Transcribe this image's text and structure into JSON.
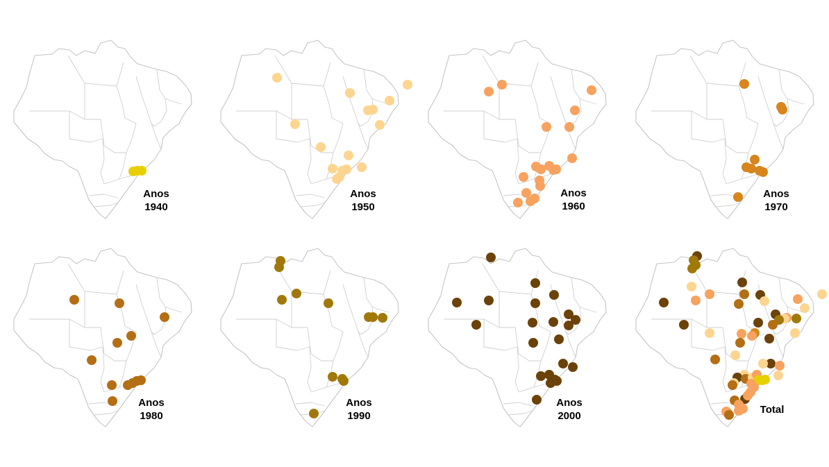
{
  "colors": {
    "1940": "#e8d000",
    "1950": "#fdd590",
    "1960": "#f7a25f",
    "1970": "#d7851c",
    "1980": "#b46e14",
    "1990": "#a1780a",
    "2000": "#6b4209",
    "map_stroke": "#c4c4c4"
  },
  "panels": [
    {
      "id": "1940",
      "label_line1": "Anos",
      "label_line2": "1940",
      "color_key": "1940"
    },
    {
      "id": "1950",
      "label_line1": "Anos",
      "label_line2": "1950",
      "color_key": "1950"
    },
    {
      "id": "1960",
      "label_line1": "Anos",
      "label_line2": "1960",
      "color_key": "1960"
    },
    {
      "id": "1970",
      "label_line1": "Anos",
      "label_line2": "1970",
      "color_key": "1970"
    },
    {
      "id": "1980",
      "label_line1": "Anos",
      "label_line2": "1980",
      "color_key": "1980"
    },
    {
      "id": "1990",
      "label_line1": "Anos",
      "label_line2": "1990",
      "color_key": "1990"
    },
    {
      "id": "2000",
      "label_line1": "Anos",
      "label_line2": "2000",
      "color_key": "2000"
    },
    {
      "id": "total",
      "label_line1": "Total",
      "label_line2": "",
      "color_key": "multi"
    }
  ]
}
